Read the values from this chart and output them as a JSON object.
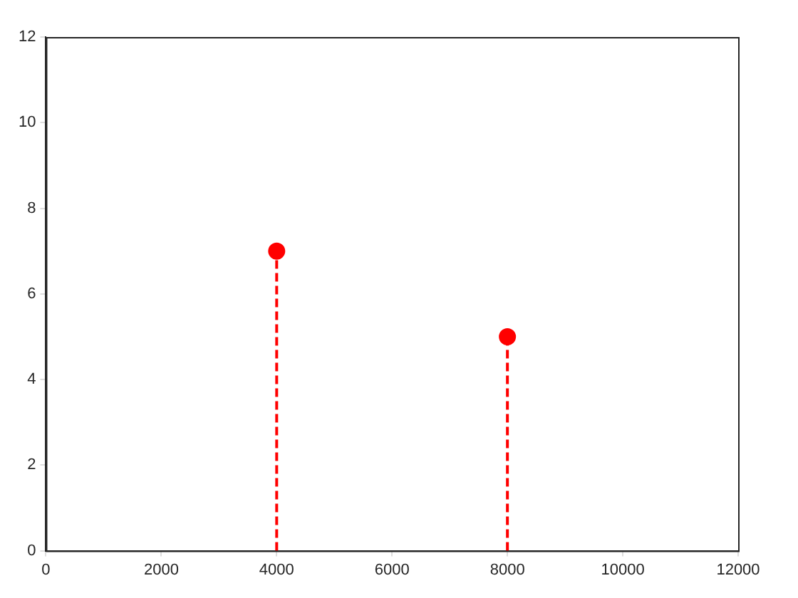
{
  "chart_data": {
    "type": "lollipop",
    "x": [
      4000,
      8000
    ],
    "values": [
      7,
      5
    ],
    "color": "#ff0000",
    "xlim": [
      0,
      12000
    ],
    "xticks": [
      0,
      2000,
      4000,
      6000,
      8000,
      10000,
      12000
    ],
    "ylim": [
      0,
      12
    ],
    "yticks": [
      0,
      2,
      4,
      6,
      8,
      10,
      12
    ],
    "grid": false,
    "legend": false,
    "marker": "circle",
    "line_style": "dashed"
  }
}
